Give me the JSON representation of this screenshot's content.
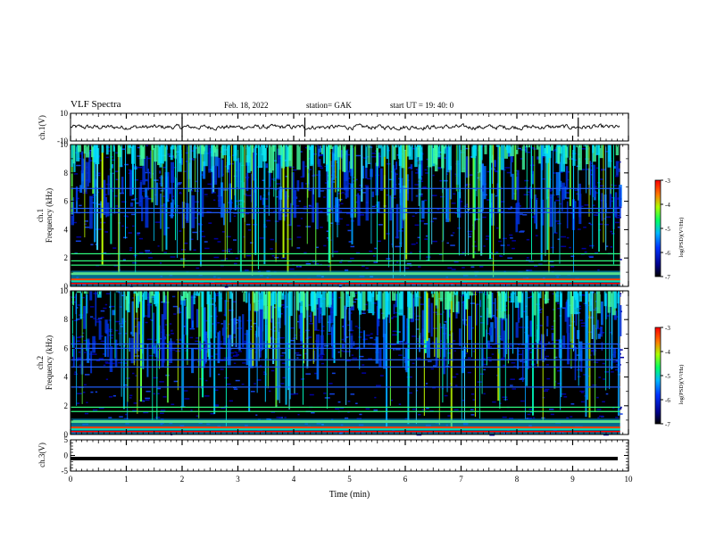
{
  "header": {
    "title": "VLF Spectra",
    "date": "Feb. 18, 2022",
    "station": "station= GAK",
    "start": "start  UT =   19: 40: 0"
  },
  "chart_data": [
    {
      "id": "ch1-waveform",
      "type": "line",
      "ylabel": "ch.1(V)",
      "ylim": [
        -10,
        10
      ],
      "yticks": [
        "10",
        "-10"
      ],
      "xlim": [
        0,
        10
      ],
      "trace_mean": 0,
      "noise_amplitude": 1.2,
      "spike_times_min": [
        2.0,
        4.2,
        9.1
      ]
    },
    {
      "id": "ch1-spectrogram",
      "type": "heatmap",
      "ylabel_line1": "ch.1",
      "ylabel_line2": "Frequency  (kHz)",
      "ylim": [
        0,
        10
      ],
      "yticks": [
        "0",
        "2",
        "4",
        "6",
        "8",
        "10"
      ],
      "xlim": [
        0,
        10
      ],
      "data_end_min": 9.85,
      "bands_khz": [
        0.4,
        0.9,
        1.5,
        1.8,
        2.3,
        5.2,
        5.5,
        6.9
      ],
      "colorbar": {
        "label": "log(PSD)(V²/Hz)",
        "ticks": [
          "-3",
          "-4",
          "-5",
          "-6",
          "-7"
        ],
        "range": [
          -7,
          -3
        ]
      }
    },
    {
      "id": "ch2-spectrogram",
      "type": "heatmap",
      "ylabel_line1": "ch.2",
      "ylabel_line2": "Frequency  (kHz)",
      "ylim": [
        0,
        10
      ],
      "yticks": [
        "0",
        "2",
        "4",
        "6",
        "8",
        "10"
      ],
      "xlim": [
        0,
        10
      ],
      "data_end_min": 9.85,
      "bands_khz": [
        0.4,
        0.9,
        1.6,
        1.9,
        3.3,
        4.7,
        5.2,
        6.0,
        6.3
      ],
      "colorbar": {
        "label": "log(PSD)(V²/Hz)",
        "ticks": [
          "-3",
          "-4",
          "-5",
          "-6",
          "-7"
        ],
        "range": [
          -7,
          -3
        ]
      }
    },
    {
      "id": "ch3-waveform",
      "type": "line",
      "ylabel": "ch.3(V)",
      "ylim": [
        -5,
        5
      ],
      "yticks": [
        "5",
        "0",
        "-5"
      ],
      "xlim": [
        0,
        10
      ],
      "trace_value": -1,
      "xlabel": "Time  (min)",
      "xticks": [
        "0",
        "1",
        "2",
        "3",
        "4",
        "5",
        "6",
        "7",
        "8",
        "9",
        "10"
      ]
    }
  ]
}
